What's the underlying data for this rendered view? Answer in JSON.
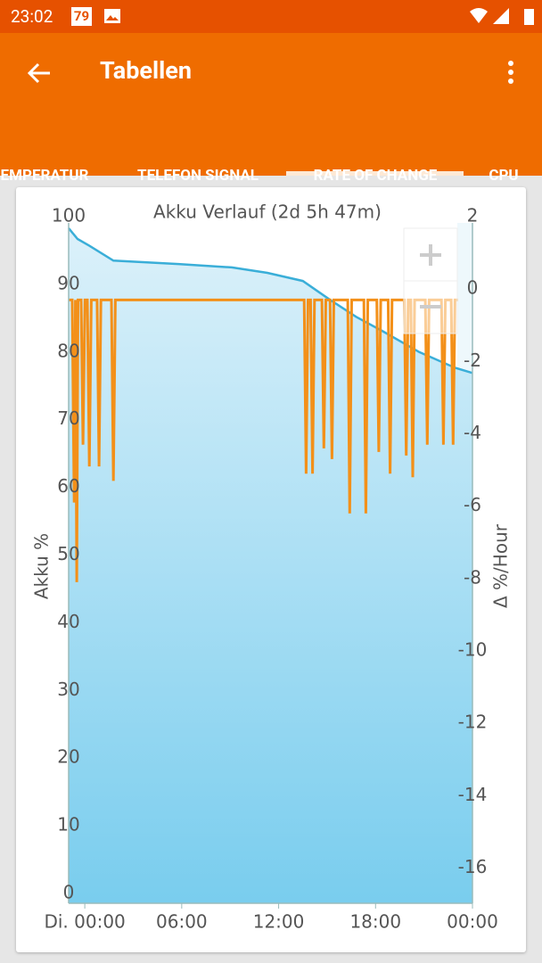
{
  "status_bar": {
    "time": "23:02",
    "badge": "79"
  },
  "app_bar": {
    "title": "Tabellen"
  },
  "tabs": [
    "EMPERATUR",
    "TELEFON SIGNAL",
    "RATE OF CHANGE",
    "CPU"
  ],
  "selected_tab": 2,
  "chart_data": {
    "type": "line",
    "title": "Akku Verlauf (2d 5h 47m)",
    "y_label": "Akku %",
    "y2_label": "Δ %/Hour",
    "xlim": [
      -1,
      24
    ],
    "xticks": [
      {
        "value": 0,
        "label": "Di. 00:00"
      },
      {
        "value": 6,
        "label": "06:00"
      },
      {
        "value": 12,
        "label": "12:00"
      },
      {
        "value": 18,
        "label": "18:00"
      },
      {
        "value": 24,
        "label": "00:00"
      }
    ],
    "ylim": [
      0,
      100
    ],
    "yticks": [
      0,
      10,
      20,
      30,
      40,
      50,
      60,
      70,
      80,
      90,
      100
    ],
    "y2lim": [
      -16.7,
      2
    ],
    "y2ticks": [
      2,
      0,
      -2,
      -4,
      -6,
      -8,
      -10,
      -12,
      -14,
      -16
    ],
    "series": [
      {
        "color": "#3aaed8",
        "fill": true,
        "x": [
          -1,
          -0.45,
          0.28,
          1.77,
          5.8,
          9.1,
          11.3,
          13.5,
          15.2,
          16.8,
          18.5,
          20.7,
          22.9,
          24
        ],
        "values": [
          98.3,
          96.7,
          95.7,
          93.5,
          93.0,
          92.5,
          91.7,
          90.5,
          87.7,
          85.2,
          83.0,
          80.0,
          77.7,
          76.9
        ]
      },
      {
        "color": "#f39019",
        "axis": "y2",
        "x": [
          -1,
          -0.78,
          -0.66,
          -0.58,
          -0.5,
          -0.42,
          -0.23,
          -0.11,
          0.01,
          0.16,
          0.28,
          0.4,
          0.76,
          0.88,
          1.0,
          1.65,
          1.77,
          1.89,
          13.58,
          13.7,
          13.82,
          13.98,
          14.1,
          14.22,
          14.68,
          14.8,
          14.92,
          15.18,
          15.3,
          15.42,
          16.28,
          16.4,
          16.52,
          17.28,
          17.4,
          17.52,
          18.08,
          18.2,
          18.32,
          18.78,
          18.9,
          19.02,
          19.78,
          19.9,
          20.02,
          20.18,
          20.3,
          20.42,
          21.08,
          21.2,
          21.32,
          22.08,
          22.2,
          22.32,
          22.68,
          22.8,
          22.92,
          23.1
        ],
        "values": [
          -0.3,
          -0.3,
          -5.9,
          -0.3,
          -8.1,
          -0.3,
          -0.3,
          -4.3,
          -0.3,
          -0.3,
          -4.9,
          -0.3,
          -0.3,
          -4.9,
          -0.3,
          -0.3,
          -5.3,
          -0.3,
          -0.3,
          -5.1,
          -0.3,
          -0.3,
          -5.1,
          -0.3,
          -0.3,
          -4.4,
          -0.3,
          -0.3,
          -4.7,
          -0.3,
          -0.3,
          -6.2,
          -0.3,
          -0.3,
          -6.2,
          -0.3,
          -0.3,
          -4.5,
          -0.3,
          -0.3,
          -5.1,
          -0.3,
          -0.3,
          -4.6,
          -0.3,
          -0.3,
          -5.2,
          -0.3,
          -0.3,
          -4.3,
          -0.3,
          -0.3,
          -4.3,
          -0.3,
          -0.3,
          -4.3,
          -0.3,
          -0.3
        ]
      }
    ]
  }
}
